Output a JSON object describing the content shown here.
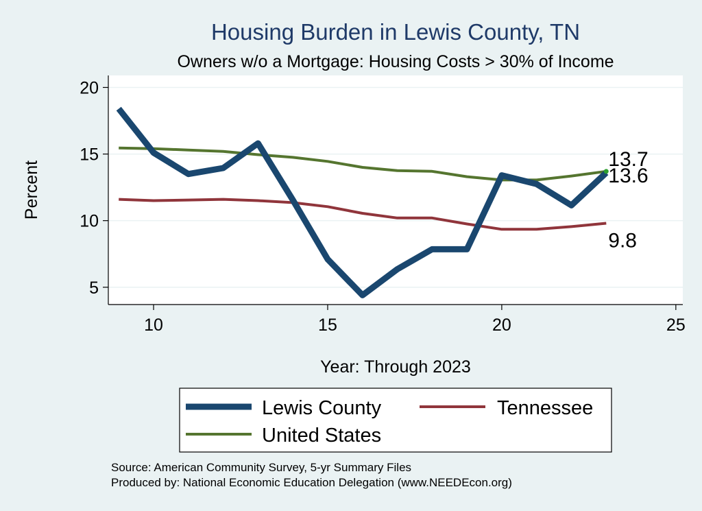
{
  "chart_data": {
    "type": "line",
    "title": "Housing Burden in Lewis County, TN",
    "subtitle": "Owners w/o a Mortgage: Housing Costs > 30% of Income",
    "xlabel": "Year: Through 2023",
    "ylabel": "Percent",
    "xlim": [
      8.7,
      25.2
    ],
    "ylim": [
      3.7,
      20.9
    ],
    "xticks": [
      10,
      15,
      20,
      25
    ],
    "yticks": [
      5,
      10,
      15,
      20
    ],
    "grid": true,
    "series": [
      {
        "name": "Tennessee",
        "color": "#90353b",
        "x": [
          9,
          10,
          11,
          12,
          13,
          14,
          15,
          16,
          17,
          18,
          19,
          20,
          21,
          22,
          23
        ],
        "values": [
          11.6,
          11.5,
          11.55,
          11.6,
          11.5,
          11.35,
          11.05,
          10.55,
          10.2,
          10.2,
          9.75,
          9.35,
          9.35,
          9.55,
          9.8
        ],
        "end_label": "9.8"
      },
      {
        "name": "United States",
        "color": "#55752f",
        "x": [
          9,
          10,
          11,
          12,
          13,
          14,
          15,
          16,
          17,
          18,
          19,
          20,
          21,
          22,
          23
        ],
        "values": [
          15.45,
          15.4,
          15.3,
          15.2,
          14.95,
          14.75,
          14.45,
          14.0,
          13.75,
          13.7,
          13.3,
          13.05,
          13.05,
          13.35,
          13.7
        ],
        "end_label": "13.7"
      },
      {
        "name": "Lewis County",
        "color": "#1a476f",
        "x": [
          9,
          10,
          11,
          12,
          13,
          14,
          15,
          16,
          17,
          18,
          19,
          20,
          21,
          22,
          23
        ],
        "values": [
          18.4,
          15.1,
          13.5,
          13.95,
          15.8,
          11.55,
          7.1,
          4.4,
          6.35,
          7.85,
          7.85,
          13.4,
          12.75,
          11.15,
          13.6
        ],
        "end_label": "13.6"
      }
    ],
    "legend": [
      "Lewis County",
      "Tennessee",
      "United States"
    ],
    "legend_position": "bottom"
  },
  "footer": {
    "source": "Source: American Community Survey, 5-yr Summary Files",
    "produced_by": "Produced by: National Economic Education Delegation (www.NEEDEcon.org)"
  }
}
